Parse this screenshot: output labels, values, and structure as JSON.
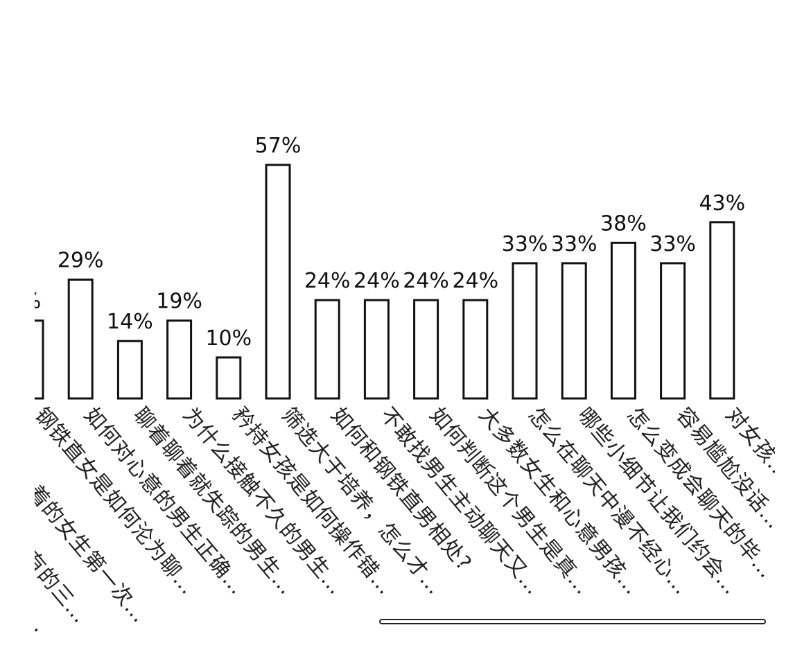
{
  "chart_data": {
    "type": "bar",
    "categories": [
      "钢铁直女是如何沦为聊…",
      "如何对心意的男生正确…",
      "聊着聊着就失踪的男生…",
      "为什么接触不久的男生…",
      "矜持女孩是如何操作错…",
      "筛选大于培养，怎么才…",
      "如何和钢铁直男相处?",
      "不敢找男生主动聊天又…",
      "如何判断这个男生是真…",
      "大多数女生和心意男孩…",
      "怎么在聊天中漫不经心…",
      "哪些小细节让我们约会…",
      "怎么变成会聊天的毕…",
      "容易尴尬没话…",
      "对女孩…"
    ],
    "partial_labels": [
      "…着的女生第一次…",
      "…易有的三…",
      "…才是…"
    ],
    "values": [
      19,
      29,
      14,
      19,
      10,
      57,
      24,
      24,
      24,
      24,
      33,
      33,
      38,
      33,
      43
    ],
    "value_labels": [
      "%",
      "29%",
      "14%",
      "19%",
      "10%",
      "57%",
      "24%",
      "24%",
      "24%",
      "24%",
      "33%",
      "33%",
      "38%",
      "33%",
      "43%"
    ],
    "ylim": [
      0,
      80
    ],
    "title": "",
    "xlabel": "",
    "ylabel": "",
    "grid": false,
    "legend": "none",
    "bar_fill": "#ffffff",
    "bar_stroke": "#111111"
  },
  "scrollbar": {
    "present": true
  }
}
